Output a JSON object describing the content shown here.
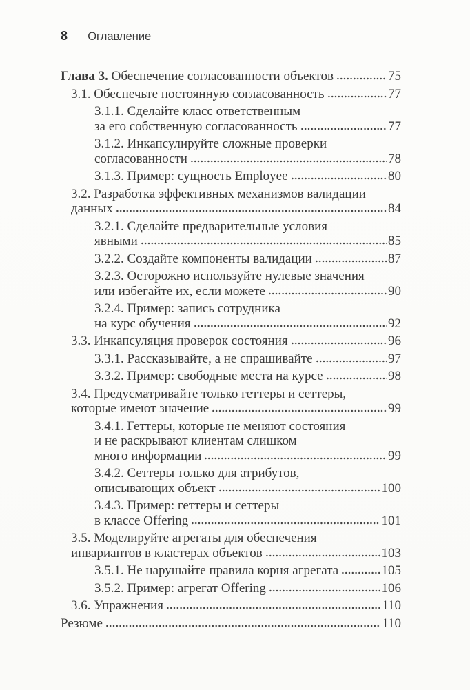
{
  "page": {
    "background_color": "#fbfbf9",
    "text_color": "#3a3a3a"
  },
  "header": {
    "page_number": "8",
    "title": "Оглавление"
  },
  "toc": {
    "entries": [
      {
        "level": 0,
        "bold_prefix": "Глава 3.",
        "lines": [
          "Обеспечение согласованности объектов"
        ],
        "page": "75"
      },
      {
        "level": 1,
        "lines": [
          "3.1. Обеспечьте постоянную согласованность"
        ],
        "page": "77"
      },
      {
        "level": 2,
        "lines": [
          "3.1.1. Сделайте класс ответственным",
          "за его собственную согласованность"
        ],
        "page": "77"
      },
      {
        "level": 2,
        "lines": [
          "3.1.2. Инкапсулируйте сложные проверки",
          "согласованности"
        ],
        "page": "78"
      },
      {
        "level": 2,
        "lines": [
          "3.1.3. Пример: сущность Employee"
        ],
        "page": "80"
      },
      {
        "level": 1,
        "lines": [
          "3.2. Разработка эффективных механизмов валидации",
          "данных"
        ],
        "page": "84"
      },
      {
        "level": 2,
        "lines": [
          "3.2.1. Сделайте предварительные условия",
          "явными"
        ],
        "page": "85"
      },
      {
        "level": 2,
        "lines": [
          "3.2.2. Создайте компоненты валидации"
        ],
        "page": "87"
      },
      {
        "level": 2,
        "lines": [
          "3.2.3. Осторожно используйте нулевые значения",
          "или избегайте их, если можете"
        ],
        "page": "90"
      },
      {
        "level": 2,
        "lines": [
          "3.2.4. Пример: запись сотрудника",
          "на курс обучения"
        ],
        "page": "92"
      },
      {
        "level": 1,
        "lines": [
          "3.3. Инкапсуляция проверок состояния"
        ],
        "page": "96"
      },
      {
        "level": 2,
        "lines": [
          "3.3.1. Рассказывайте, а не спрашивайте"
        ],
        "page": "97"
      },
      {
        "level": 2,
        "lines": [
          "3.3.2. Пример: свободные места на курсе"
        ],
        "page": "98"
      },
      {
        "level": 1,
        "lines": [
          "3.4. Предусматривайте только геттеры и сеттеры,",
          "которые имеют значение"
        ],
        "page": "99"
      },
      {
        "level": 2,
        "lines": [
          "3.4.1. Геттеры, которые не меняют состояния",
          "и не раскрывают клиентам слишком",
          "много информации"
        ],
        "page": "99"
      },
      {
        "level": 2,
        "lines": [
          "3.4.2. Сеттеры только для атрибутов,",
          "описывающих объект"
        ],
        "page": "100"
      },
      {
        "level": 2,
        "lines": [
          "3.4.3. Пример: геттеры и сеттеры",
          "в классе Offering"
        ],
        "page": "101"
      },
      {
        "level": 1,
        "lines": [
          "3.5. Моделируйте агрегаты для обеспечения",
          "инвариантов в кластерах объектов"
        ],
        "page": "103"
      },
      {
        "level": 2,
        "lines": [
          "3.5.1. Не нарушайте правила корня агрегата"
        ],
        "page": "105"
      },
      {
        "level": 2,
        "lines": [
          "3.5.2. Пример: агрегат Offering"
        ],
        "page": "106"
      },
      {
        "level": 1,
        "lines": [
          "3.6. Упражнения"
        ],
        "page": "110"
      },
      {
        "level": 0,
        "lines": [
          "Резюме"
        ],
        "page": "110"
      }
    ]
  }
}
